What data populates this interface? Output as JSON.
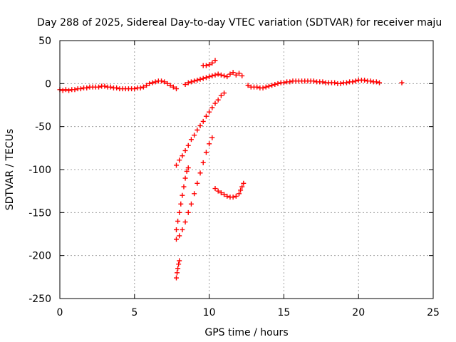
{
  "chart_data": {
    "type": "scatter",
    "title": "Day 288 of 2025, Sidereal Day-to-day VTEC variation (SDTVAR) for receiver maju",
    "xlabel": "GPS time / hours",
    "ylabel": "SDTVAR / TECUs",
    "xlim": [
      0,
      25
    ],
    "ylim": [
      -250,
      50
    ],
    "xticks": [
      "0",
      "5",
      "10",
      "15",
      "20",
      "25"
    ],
    "yticks": [
      "50",
      "0",
      "-50",
      "-100",
      "-150",
      "-200",
      "-250"
    ],
    "grid": true,
    "marker": "plus",
    "color": "#ff0000",
    "series": [
      {
        "points": [
          [
            0.0,
            -7
          ],
          [
            0.2,
            -8
          ],
          [
            0.4,
            -7
          ],
          [
            0.6,
            -8
          ],
          [
            0.8,
            -7
          ],
          [
            1.0,
            -7
          ],
          [
            1.2,
            -6
          ],
          [
            1.4,
            -6
          ],
          [
            1.6,
            -5
          ],
          [
            1.8,
            -5
          ],
          [
            2.0,
            -4
          ],
          [
            2.2,
            -4
          ],
          [
            2.4,
            -4
          ],
          [
            2.6,
            -4
          ],
          [
            2.8,
            -3
          ],
          [
            3.0,
            -3
          ],
          [
            3.2,
            -4
          ],
          [
            3.4,
            -4
          ],
          [
            3.6,
            -5
          ],
          [
            3.8,
            -5
          ],
          [
            4.0,
            -6
          ],
          [
            4.2,
            -6
          ],
          [
            4.4,
            -6
          ],
          [
            4.6,
            -6
          ],
          [
            4.8,
            -6
          ],
          [
            5.0,
            -6
          ],
          [
            5.2,
            -5
          ],
          [
            5.4,
            -5
          ],
          [
            5.6,
            -4
          ],
          [
            5.8,
            -2
          ],
          [
            6.0,
            0
          ],
          [
            6.2,
            1
          ],
          [
            6.4,
            2
          ],
          [
            6.6,
            3
          ],
          [
            6.8,
            3
          ],
          [
            7.0,
            2
          ],
          [
            7.2,
            0
          ],
          [
            7.4,
            -2
          ],
          [
            7.6,
            -4
          ],
          [
            7.8,
            -6
          ]
        ]
      },
      {
        "points": [
          [
            8.4,
            -1
          ],
          [
            8.6,
            1
          ],
          [
            8.8,
            2
          ],
          [
            9.0,
            3
          ],
          [
            9.2,
            4
          ],
          [
            9.4,
            5
          ],
          [
            9.6,
            6
          ],
          [
            9.8,
            7
          ],
          [
            10.0,
            8
          ],
          [
            10.2,
            9
          ],
          [
            10.4,
            10
          ],
          [
            10.6,
            11
          ],
          [
            10.8,
            10
          ],
          [
            11.0,
            9
          ],
          [
            11.2,
            8
          ],
          [
            11.4,
            11
          ],
          [
            11.6,
            13
          ],
          [
            11.8,
            10
          ],
          [
            12.0,
            12
          ],
          [
            12.2,
            9
          ]
        ]
      },
      {
        "points": [
          [
            9.6,
            21
          ],
          [
            9.8,
            21
          ],
          [
            10.0,
            22
          ],
          [
            10.2,
            24
          ],
          [
            10.4,
            27
          ]
        ]
      },
      {
        "points": [
          [
            12.6,
            -2
          ],
          [
            12.8,
            -4
          ],
          [
            13.0,
            -4
          ],
          [
            13.2,
            -4
          ],
          [
            13.4,
            -5
          ],
          [
            13.6,
            -5
          ],
          [
            13.8,
            -4
          ],
          [
            14.0,
            -3
          ],
          [
            14.2,
            -2
          ],
          [
            14.4,
            -1
          ],
          [
            14.6,
            0
          ],
          [
            14.8,
            1
          ],
          [
            15.0,
            1
          ],
          [
            15.2,
            2
          ],
          [
            15.4,
            2
          ],
          [
            15.6,
            3
          ],
          [
            15.8,
            3
          ],
          [
            16.0,
            3
          ],
          [
            16.2,
            3
          ],
          [
            16.4,
            3
          ],
          [
            16.6,
            3
          ],
          [
            16.8,
            3
          ],
          [
            17.0,
            3
          ],
          [
            17.2,
            2
          ],
          [
            17.4,
            2
          ],
          [
            17.6,
            2
          ],
          [
            17.8,
            1
          ],
          [
            18.0,
            1
          ],
          [
            18.2,
            1
          ],
          [
            18.4,
            1
          ],
          [
            18.6,
            0
          ],
          [
            18.8,
            0
          ],
          [
            19.0,
            1
          ],
          [
            19.2,
            1
          ],
          [
            19.4,
            2
          ],
          [
            19.6,
            2
          ],
          [
            19.8,
            3
          ],
          [
            20.0,
            4
          ],
          [
            20.2,
            4
          ],
          [
            20.4,
            4
          ],
          [
            20.6,
            3
          ],
          [
            20.8,
            3
          ],
          [
            21.0,
            2
          ],
          [
            21.2,
            2
          ],
          [
            21.4,
            1
          ]
        ]
      },
      {
        "points": [
          [
            22.9,
            1
          ]
        ]
      },
      {
        "points": [
          [
            7.8,
            -95
          ],
          [
            8.0,
            -89
          ],
          [
            8.2,
            -84
          ],
          [
            8.4,
            -78
          ],
          [
            8.6,
            -72
          ],
          [
            8.8,
            -65
          ],
          [
            9.0,
            -60
          ],
          [
            9.2,
            -54
          ],
          [
            9.4,
            -49
          ],
          [
            9.6,
            -44
          ],
          [
            9.8,
            -38
          ],
          [
            10.0,
            -33
          ],
          [
            10.2,
            -28
          ],
          [
            10.4,
            -23
          ],
          [
            10.6,
            -19
          ],
          [
            10.8,
            -14
          ],
          [
            11.0,
            -11
          ]
        ]
      },
      {
        "points": [
          [
            7.8,
            -170
          ],
          [
            7.9,
            -160
          ],
          [
            8.0,
            -150
          ],
          [
            8.1,
            -140
          ],
          [
            8.2,
            -130
          ],
          [
            8.3,
            -120
          ],
          [
            8.4,
            -110
          ],
          [
            8.5,
            -102
          ],
          [
            8.6,
            -98
          ]
        ]
      },
      {
        "points": [
          [
            7.8,
            -181
          ],
          [
            8.0,
            -177
          ],
          [
            8.2,
            -170
          ],
          [
            8.4,
            -161
          ],
          [
            8.6,
            -150
          ],
          [
            8.8,
            -140
          ],
          [
            9.0,
            -128
          ],
          [
            9.2,
            -116
          ],
          [
            9.4,
            -104
          ],
          [
            9.6,
            -92
          ],
          [
            9.8,
            -80
          ],
          [
            10.0,
            -70
          ],
          [
            10.2,
            -63
          ]
        ]
      },
      {
        "points": [
          [
            7.8,
            -226
          ],
          [
            7.85,
            -220
          ],
          [
            7.9,
            -215
          ],
          [
            7.95,
            -210
          ],
          [
            8.0,
            -206
          ]
        ]
      },
      {
        "points": [
          [
            10.4,
            -122
          ],
          [
            10.6,
            -125
          ],
          [
            10.8,
            -127
          ],
          [
            11.0,
            -129
          ],
          [
            11.2,
            -131
          ],
          [
            11.4,
            -132
          ],
          [
            11.6,
            -132
          ],
          [
            11.8,
            -131
          ],
          [
            12.0,
            -128
          ],
          [
            12.1,
            -124
          ],
          [
            12.2,
            -120
          ],
          [
            12.3,
            -116
          ]
        ]
      }
    ]
  }
}
